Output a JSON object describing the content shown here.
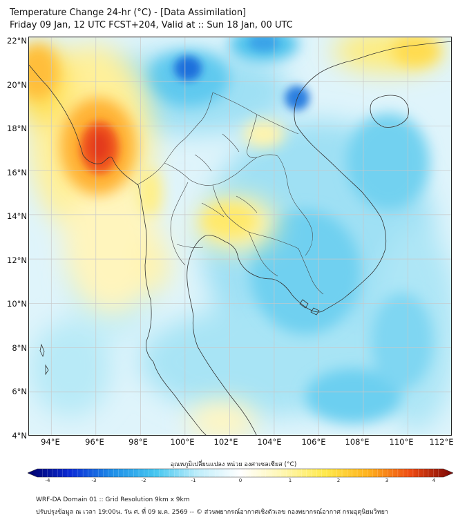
{
  "header": {
    "title_line1": "Temperature Change 24-hr (°C) - [Data Assimilation]",
    "title_line2": "Friday 09 Jan, 12 UTC FCST+204, Valid at :: Sun 18 Jan, 00 UTC"
  },
  "map": {
    "lat_labels": [
      "22°N",
      "20°N",
      "18°N",
      "16°N",
      "14°N",
      "12°N",
      "10°N",
      "8°N",
      "6°N",
      "4°N"
    ],
    "lon_labels": [
      "94°E",
      "96°E",
      "98°E",
      "100°E",
      "102°E",
      "104°E",
      "106°E",
      "108°E",
      "110°E",
      "112°E"
    ],
    "lat_range": [
      4,
      22
    ],
    "lon_range": [
      93,
      112
    ],
    "colors": {
      "background": "#dff4fb",
      "light_blue": "#9fe0f4",
      "mid_blue": "#4fc3ec",
      "deep_blue": "#1f6fdc",
      "light_yellow": "#fdf6b4",
      "yellow": "#ffe95a",
      "orange": "#ff9d1e",
      "red": "#e8321c",
      "border": "#333333",
      "grid": "#c8c8c8"
    }
  },
  "colorbar": {
    "title": "อุณหภูมิเปลี่ยนแปลง หน่วย องศาเซลเซียส (°C)",
    "ticks": [
      "-4",
      "-3",
      "-2",
      "-1",
      "0",
      "1",
      "2",
      "3",
      "4"
    ],
    "min": -4,
    "max": 4,
    "stops": [
      "#00006a",
      "#0a2bd6",
      "#1f8fe8",
      "#45c6f0",
      "#bfeefb",
      "#ffffff",
      "#fff7b0",
      "#ffe94a",
      "#ffb21e",
      "#ee4a12",
      "#7a0606"
    ]
  },
  "footer": {
    "line1": "WRF-DA Domain 01 :: Grid Resolution 9km x 9km",
    "line2": "ปรับปรุงข้อมูล ณ เวลา 19:00น. วัน ศ. ที่ 09 ม.ค. 2569 -- © ส่วนพยากรณ์อากาศเชิงตัวเลข กองพยากรณ์อากาศ กรมอุตุนิยมวิทยา"
  }
}
